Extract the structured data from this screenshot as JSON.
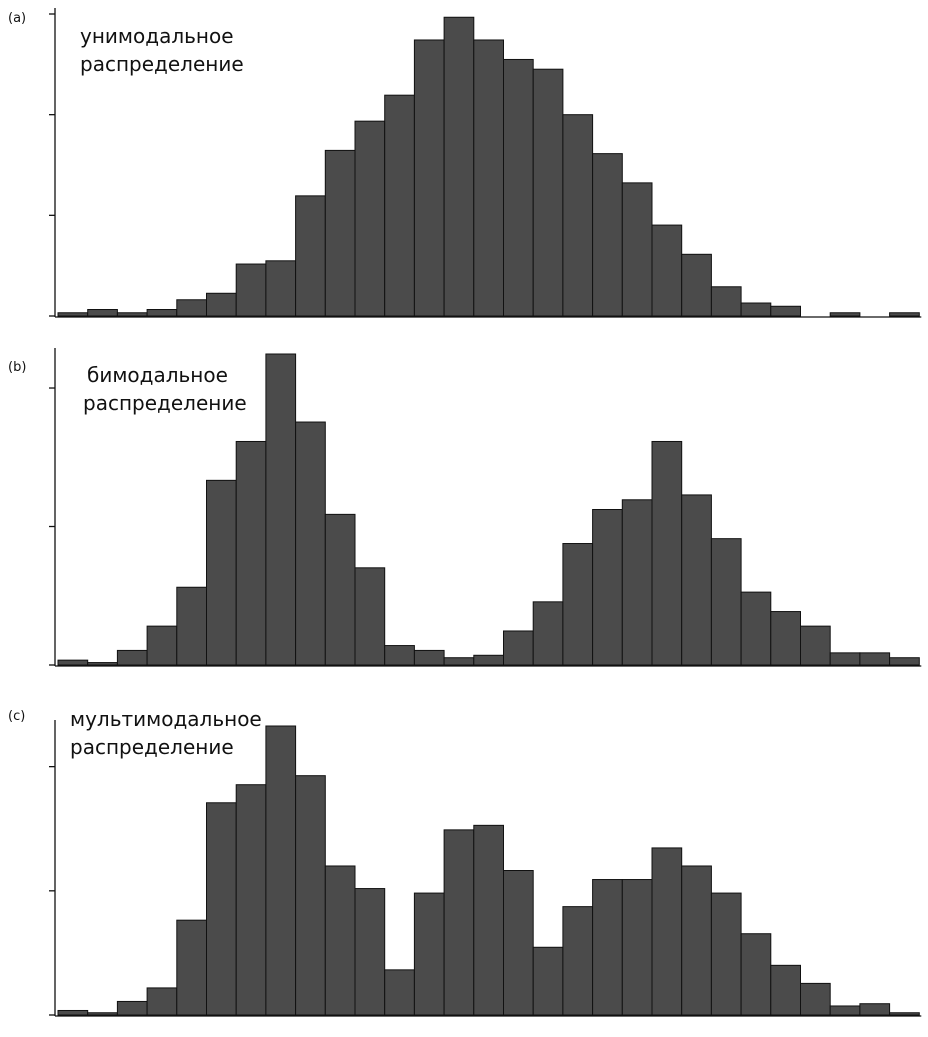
{
  "chart_data": [
    {
      "type": "bar",
      "panel_label": "(a)",
      "title_lines": [
        "унимодальное",
        "распределение"
      ],
      "values": [
        1,
        2,
        1,
        2,
        5,
        7,
        16,
        17,
        37,
        51,
        60,
        68,
        85,
        92,
        85,
        79,
        76,
        62,
        50,
        41,
        28,
        19,
        9,
        4,
        3,
        0,
        1,
        0,
        1
      ],
      "ylim": [
        0,
        93
      ],
      "yticks": [
        0,
        31,
        62,
        93
      ],
      "grid": false
    },
    {
      "type": "bar",
      "panel_label": "(b)",
      "title_lines": [
        "бимодальное",
        "распределение"
      ],
      "values": [
        1,
        0.5,
        3,
        8,
        16,
        38,
        46,
        64,
        50,
        31,
        20,
        4,
        3,
        1.5,
        2,
        7,
        13,
        25,
        32,
        34,
        46,
        35,
        26,
        15,
        11,
        8,
        2.5,
        2.5,
        1.5
      ],
      "ylim": [
        0,
        64
      ],
      "yticks": [
        0,
        28.5,
        57
      ],
      "grid": false
    },
    {
      "type": "bar",
      "panel_label": "(c)",
      "title_lines": [
        "мультимодальное",
        "распределение"
      ],
      "values": [
        1,
        0.5,
        3,
        6,
        21,
        47,
        51,
        64,
        53,
        33,
        28,
        10,
        27,
        41,
        42,
        32,
        15,
        24,
        30,
        30,
        37,
        33,
        27,
        18,
        11,
        7,
        2,
        2.5,
        0.5
      ],
      "ylim": [
        0,
        64
      ],
      "yticks": [
        0,
        27.5,
        55
      ],
      "grid": false
    }
  ]
}
